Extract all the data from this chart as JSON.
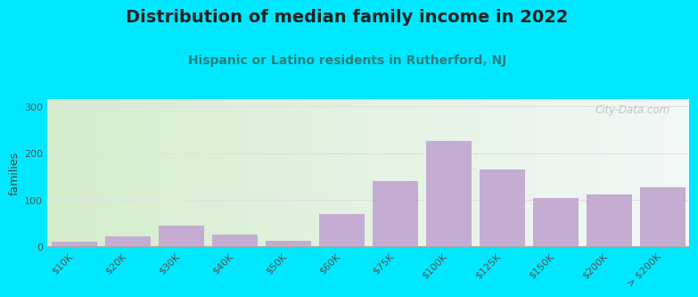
{
  "title": "Distribution of median family income in 2022",
  "subtitle": "Hispanic or Latino residents in Rutherford, NJ",
  "ylabel": "families",
  "categories": [
    "$10K",
    "$20K",
    "$30K",
    "$40K",
    "$50K",
    "$60K",
    "$75K",
    "$100K",
    "$125K",
    "$150K",
    "$200K",
    "> $200K"
  ],
  "values": [
    10,
    22,
    45,
    25,
    12,
    70,
    140,
    225,
    165,
    103,
    112,
    127
  ],
  "bar_color": "#c4acd2",
  "background_color": "#00e8ff",
  "title_fontsize": 14,
  "subtitle_fontsize": 10,
  "ylabel_fontsize": 9,
  "yticks": [
    0,
    100,
    200,
    300
  ],
  "ylim": [
    0,
    315
  ],
  "watermark": "City-Data.com",
  "watermark_icon": "●",
  "title_color": "#222222",
  "subtitle_color": "#2a8080",
  "ylabel_color": "#444444",
  "tick_color": "#555555",
  "grid_color": "#e0e0e0",
  "spine_color": "#aaaaaa",
  "watermark_color": "#bbbbbb"
}
